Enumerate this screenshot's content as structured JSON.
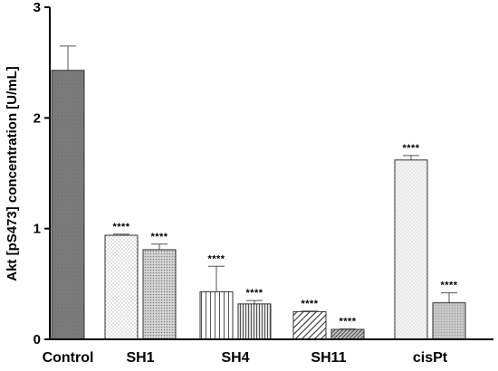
{
  "chart_data": {
    "type": "bar",
    "title": "",
    "xlabel": "",
    "ylabel": "Akt [pS473] concentration [U/mL]",
    "ylim": [
      0,
      3
    ],
    "yticks": [
      "0",
      "1",
      "2",
      "3"
    ],
    "grid": false,
    "groups": [
      {
        "label": "Control",
        "bars": [
          {
            "value": 2.43,
            "error": 0.22,
            "pattern": "solid-dark",
            "significance": ""
          }
        ]
      },
      {
        "label": "SH1",
        "bars": [
          {
            "value": 0.94,
            "error": 0.01,
            "pattern": "fine-dots",
            "significance": "****"
          },
          {
            "value": 0.81,
            "error": 0.05,
            "pattern": "dense-dots",
            "significance": "****"
          }
        ]
      },
      {
        "label": "SH4",
        "bars": [
          {
            "value": 0.43,
            "error": 0.23,
            "pattern": "vertical-lines",
            "significance": "****"
          },
          {
            "value": 0.32,
            "error": 0.03,
            "pattern": "dense-vertical-lines",
            "significance": "****"
          }
        ]
      },
      {
        "label": "SH11",
        "bars": [
          {
            "value": 0.25,
            "error": 0.005,
            "pattern": "diagonal-lines",
            "significance": "****"
          },
          {
            "value": 0.09,
            "error": 0.005,
            "pattern": "dense-diagonal-lines",
            "significance": "****"
          }
        ]
      },
      {
        "label": "cisPt",
        "bars": [
          {
            "value": 1.62,
            "error": 0.04,
            "pattern": "light-dots",
            "significance": "****"
          },
          {
            "value": 0.33,
            "error": 0.09,
            "pattern": "grey-dots",
            "significance": "****"
          }
        ]
      }
    ]
  }
}
